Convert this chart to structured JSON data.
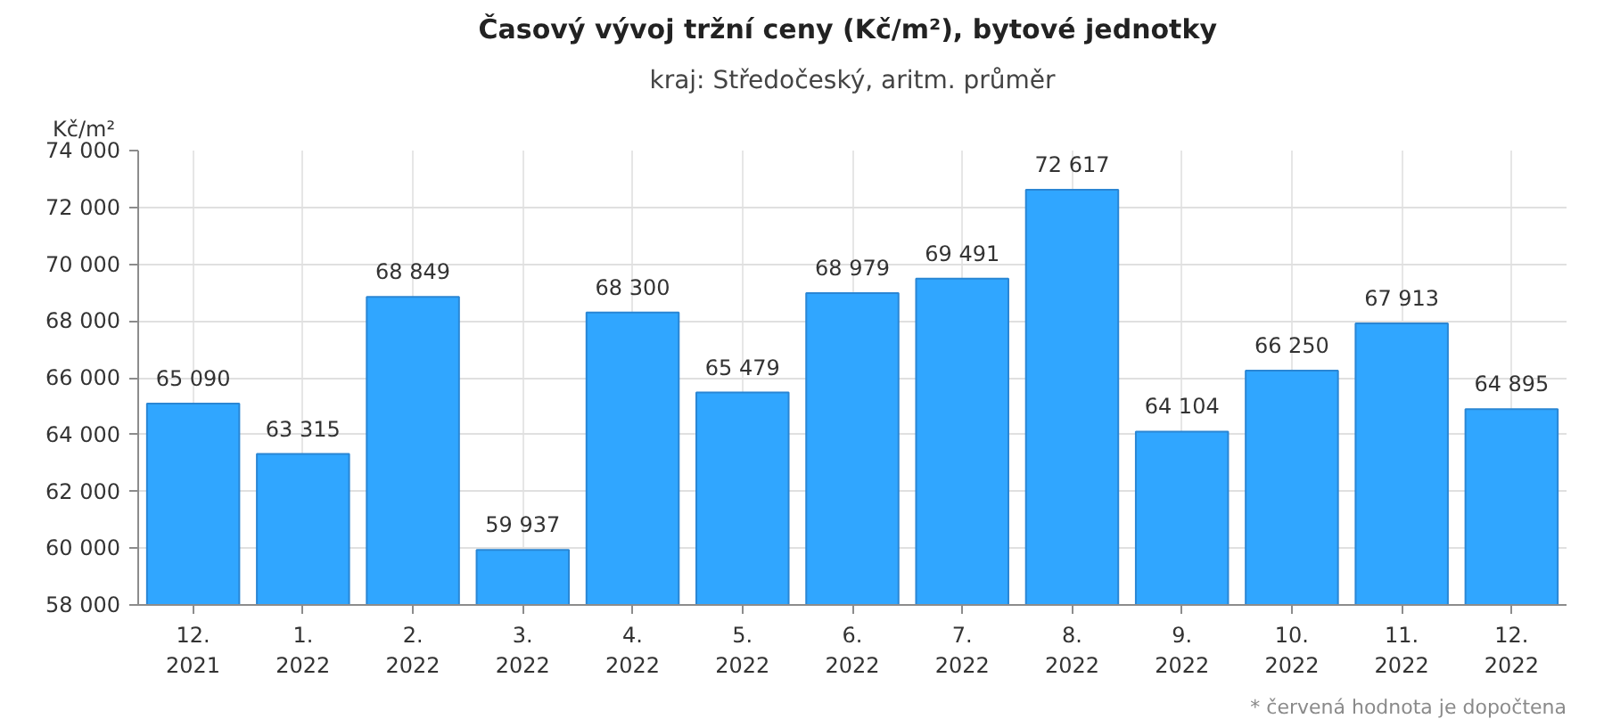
{
  "chart_data": {
    "type": "bar",
    "title": "Časový vývoj tržní ceny  (Kč/m²), bytové jednotky",
    "subtitle": "kraj: Středočeský, aritm. průměr",
    "ylabel": "Kč/m²",
    "annotations": [
      "* červená hodnota je dopočtena"
    ],
    "categories": [
      "12.\n2021",
      "1.\n2022",
      "2.\n2022",
      "3.\n2022",
      "4.\n2022",
      "5.\n2022",
      "6.\n2022",
      "7.\n2022",
      "8.\n2022",
      "9.\n2022",
      "10.\n2022",
      "11.\n2022",
      "12.\n2022"
    ],
    "values": [
      65090,
      63315,
      68849,
      59937,
      68300,
      65479,
      68979,
      69491,
      72617,
      64104,
      66250,
      67913,
      64895
    ],
    "color": "#30a6ff",
    "ylim": [
      58000,
      74000
    ],
    "yticks": [
      {
        "value": 58000,
        "label": "58 000"
      },
      {
        "value": 60000,
        "label": "60 000"
      },
      {
        "value": 62000,
        "label": "62 000"
      },
      {
        "value": 64000,
        "label": "64 000"
      },
      {
        "value": 66000,
        "label": "66 000"
      },
      {
        "value": 68000,
        "label": "68 000"
      },
      {
        "value": 70000,
        "label": "70 000"
      },
      {
        "value": 72000,
        "label": "72 000"
      },
      {
        "value": 74000,
        "label": "74 000"
      }
    ],
    "grid": true,
    "data_labels": true
  }
}
